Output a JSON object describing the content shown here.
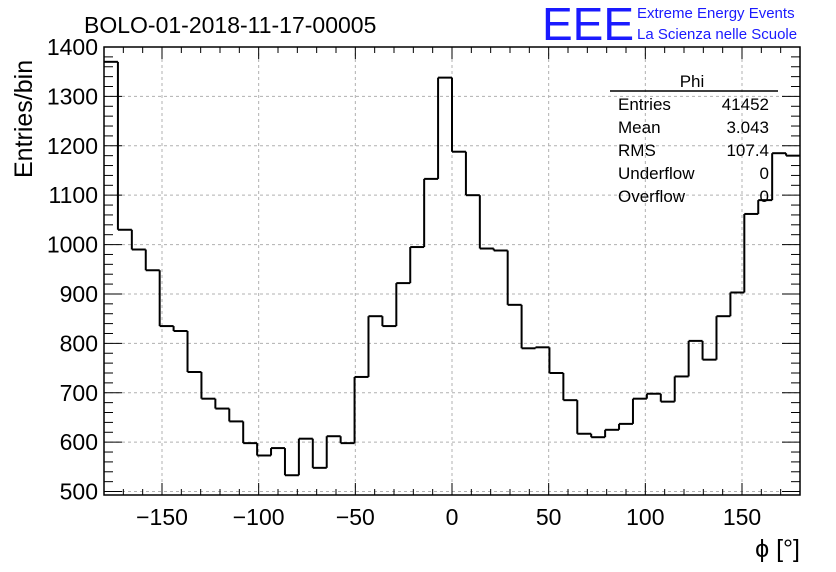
{
  "header": {
    "title": "BOLO-01-2018-11-17-00005",
    "logo_text": "EEE",
    "logo_line1": "Extreme Energy Events",
    "logo_line2": "La Scienza nelle Scuole"
  },
  "stats": {
    "name": "Phi",
    "rows": [
      {
        "label": "Entries",
        "value": "41452"
      },
      {
        "label": "Mean",
        "value": "3.043"
      },
      {
        "label": "RMS",
        "value": "107.4"
      },
      {
        "label": "Underflow",
        "value": "0"
      },
      {
        "label": "Overflow",
        "value": "0"
      }
    ]
  },
  "chart_data": {
    "type": "histogram",
    "title": "BOLO-01-2018-11-17-00005",
    "xlabel": "ϕ [°]",
    "ylabel": "Entries/bin",
    "xlim": [
      -180,
      180
    ],
    "ylim": [
      493,
      1400
    ],
    "grid": true,
    "bin_width": 7.2,
    "x_ticks": [
      -150,
      -100,
      -50,
      0,
      50,
      100,
      150
    ],
    "x_tick_labels": [
      "−150",
      "−100",
      "−50",
      "0",
      "50",
      "100",
      "150"
    ],
    "y_ticks": [
      500,
      600,
      700,
      800,
      900,
      1000,
      1100,
      1200,
      1300,
      1400
    ],
    "y_tick_labels": [
      "500",
      "600",
      "700",
      "800",
      "900",
      "1000",
      "1100",
      "1200",
      "1300",
      "1400"
    ],
    "bin_edges_start": -180,
    "values": [
      1370,
      1030,
      990,
      948,
      835,
      825,
      742,
      688,
      668,
      642,
      598,
      573,
      588,
      533,
      607,
      548,
      612,
      598,
      732,
      855,
      835,
      922,
      995,
      1133,
      1338,
      1188,
      1100,
      992,
      988,
      878,
      790,
      792,
      740,
      685,
      617,
      610,
      625,
      637,
      688,
      698,
      682,
      733,
      805,
      767,
      855,
      903,
      1062,
      1090,
      1185,
      1180
    ],
    "colors": {
      "line": "#000000",
      "logo": "#1a1aff"
    }
  }
}
